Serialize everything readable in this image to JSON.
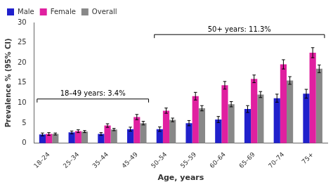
{
  "chart_data": {
    "type": "bar",
    "categories": [
      "18–24",
      "25–34",
      "35–44",
      "45–49",
      "50–54",
      "55–59",
      "60–64",
      "65–69",
      "70–74",
      "75+"
    ],
    "series": [
      {
        "name": "Male",
        "color": "#2020cc",
        "values": [
          2.2,
          2.7,
          2.3,
          3.5,
          3.5,
          5.0,
          5.9,
          8.5,
          11.2,
          12.3
        ],
        "errors": [
          0.35,
          0.35,
          0.35,
          0.5,
          0.55,
          0.65,
          0.75,
          0.85,
          1.0,
          1.1
        ]
      },
      {
        "name": "Female",
        "color": "#e020a0",
        "values": [
          2.3,
          3.0,
          4.4,
          6.5,
          8.1,
          11.7,
          14.4,
          16.0,
          19.6,
          22.5
        ],
        "errors": [
          0.35,
          0.35,
          0.45,
          0.65,
          0.65,
          0.95,
          0.95,
          0.95,
          1.15,
          1.25
        ]
      },
      {
        "name": "Overall",
        "color": "#888888",
        "values": [
          2.3,
          2.9,
          3.4,
          5.0,
          5.8,
          8.7,
          9.7,
          12.1,
          15.6,
          18.5
        ],
        "errors": [
          0.25,
          0.25,
          0.28,
          0.45,
          0.45,
          0.65,
          0.65,
          0.75,
          0.95,
          0.95
        ]
      }
    ],
    "xlabel": "Age, years",
    "ylabel": "Prevalence % (95% CI)",
    "ylim": [
      0,
      30
    ],
    "yticks": [
      0,
      5,
      10,
      15,
      20,
      25,
      30
    ],
    "grid": false,
    "legend": "upper left",
    "annotations": [
      {
        "text": "18–49 years: 3.4%",
        "y": 11.0,
        "from": "18–24",
        "to": "45–49"
      },
      {
        "text": "50+ years: 11.3%",
        "y": 27.0,
        "from": "50–54",
        "to": "75+"
      }
    ]
  }
}
